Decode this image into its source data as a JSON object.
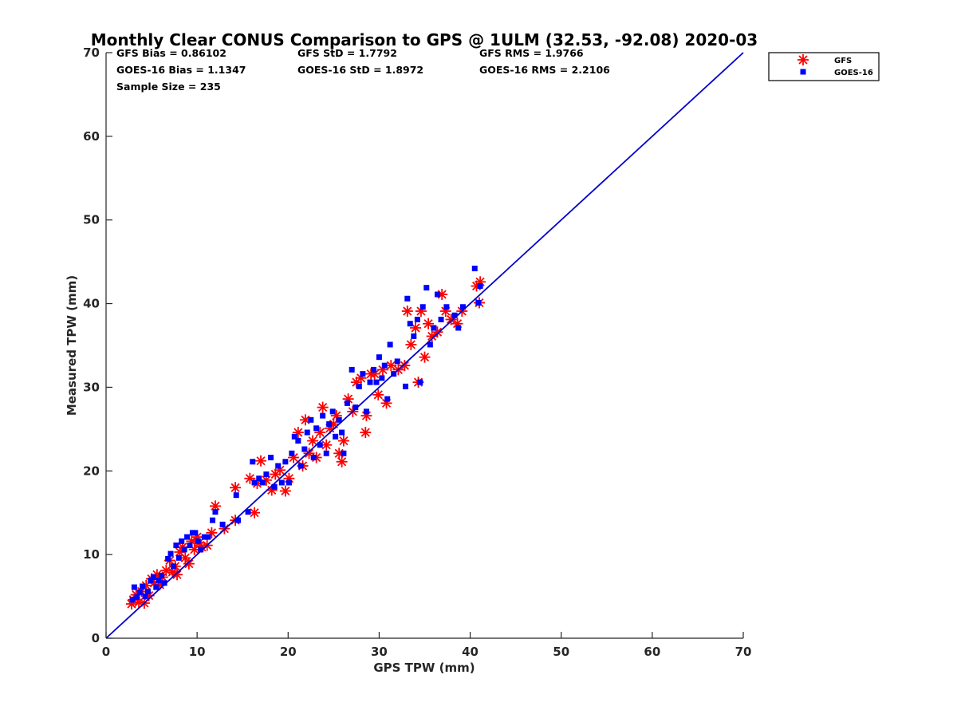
{
  "chart_data": {
    "type": "scatter",
    "title": "Monthly Clear CONUS Comparison to GPS @ 1ULM (32.53, -92.08) 2020-03",
    "xlabel": "GPS TPW (mm)",
    "ylabel": "Measured TPW (mm)",
    "xlim": [
      0,
      70
    ],
    "ylim": [
      0,
      70
    ],
    "xticks": [
      "0",
      "10",
      "20",
      "30",
      "40",
      "50",
      "60",
      "70"
    ],
    "yticks": [
      "0",
      "10",
      "20",
      "30",
      "40",
      "50",
      "60",
      "70"
    ],
    "grid": false,
    "legend_position": "top-right outside",
    "reference_line": {
      "x": [
        0,
        70
      ],
      "y": [
        0,
        70
      ],
      "color": "#0000cc"
    },
    "stats": {
      "gfs_bias": "GFS Bias = 0.86102",
      "gfs_std": "GFS StD = 1.7792",
      "gfs_rms": "GFS RMS = 1.9766",
      "goes_bias": "GOES-16 Bias = 1.1347",
      "goes_std": "GOES-16 StD = 1.8972",
      "goes_rms": "GOES-16 RMS = 2.2106",
      "sample_size": "Sample Size = 235"
    },
    "series": [
      {
        "name": "GFS",
        "marker": "asterisk",
        "color": "#ff0000",
        "points": [
          [
            2.8,
            4.1
          ],
          [
            3.0,
            4.6
          ],
          [
            3.3,
            5.2
          ],
          [
            3.6,
            4.3
          ],
          [
            3.9,
            5.6
          ],
          [
            4.2,
            4.2
          ],
          [
            4.4,
            6.3
          ],
          [
            4.7,
            5.1
          ],
          [
            5.0,
            7.1
          ],
          [
            5.3,
            6.6
          ],
          [
            5.6,
            7.6
          ],
          [
            5.9,
            6.4
          ],
          [
            6.2,
            7.3
          ],
          [
            6.6,
            8.1
          ],
          [
            7.0,
            9.3
          ],
          [
            7.3,
            7.9
          ],
          [
            7.6,
            8.6
          ],
          [
            7.8,
            7.6
          ],
          [
            8.1,
            10.3
          ],
          [
            8.4,
            10.9
          ],
          [
            8.7,
            9.6
          ],
          [
            9.1,
            8.9
          ],
          [
            9.4,
            11.6
          ],
          [
            9.7,
            10.6
          ],
          [
            10.0,
            12.1
          ],
          [
            10.2,
            11.4
          ],
          [
            10.5,
            10.9
          ],
          [
            11.1,
            11.1
          ],
          [
            11.6,
            12.6
          ],
          [
            12.0,
            15.8
          ],
          [
            13.0,
            13.1
          ],
          [
            14.2,
            18.0
          ],
          [
            14.2,
            14.1
          ],
          [
            15.8,
            19.1
          ],
          [
            16.3,
            15.0
          ],
          [
            16.6,
            18.5
          ],
          [
            17.0,
            21.2
          ],
          [
            17.6,
            18.9
          ],
          [
            18.2,
            17.7
          ],
          [
            18.6,
            19.6
          ],
          [
            19.1,
            20.1
          ],
          [
            19.7,
            17.6
          ],
          [
            20.1,
            19.1
          ],
          [
            20.6,
            21.6
          ],
          [
            21.1,
            24.6
          ],
          [
            21.6,
            20.6
          ],
          [
            21.9,
            26.1
          ],
          [
            22.3,
            22.1
          ],
          [
            22.7,
            23.6
          ],
          [
            23.1,
            21.6
          ],
          [
            23.5,
            24.6
          ],
          [
            23.8,
            27.6
          ],
          [
            24.2,
            23.1
          ],
          [
            24.6,
            25.1
          ],
          [
            25.0,
            25.6
          ],
          [
            25.3,
            26.6
          ],
          [
            25.6,
            22.1
          ],
          [
            25.9,
            21.1
          ],
          [
            26.1,
            23.6
          ],
          [
            26.6,
            28.6
          ],
          [
            27.1,
            27.1
          ],
          [
            27.5,
            30.6
          ],
          [
            28.0,
            31.1
          ],
          [
            28.5,
            24.6
          ],
          [
            28.6,
            26.6
          ],
          [
            29.1,
            31.6
          ],
          [
            29.5,
            31.6
          ],
          [
            29.9,
            29.1
          ],
          [
            30.4,
            32.1
          ],
          [
            30.8,
            28.1
          ],
          [
            31.3,
            32.6
          ],
          [
            32.1,
            32.1
          ],
          [
            32.8,
            32.6
          ],
          [
            33.1,
            39.1
          ],
          [
            33.5,
            35.1
          ],
          [
            34.0,
            37.1
          ],
          [
            34.3,
            30.6
          ],
          [
            34.6,
            39.1
          ],
          [
            35.0,
            33.6
          ],
          [
            35.4,
            37.6
          ],
          [
            35.8,
            36.1
          ],
          [
            36.4,
            36.6
          ],
          [
            36.9,
            41.1
          ],
          [
            37.3,
            39.1
          ],
          [
            37.9,
            38.1
          ],
          [
            38.6,
            37.6
          ],
          [
            39.1,
            39.1
          ],
          [
            40.7,
            42.1
          ],
          [
            41.0,
            40.1
          ],
          [
            41.1,
            42.6
          ]
        ]
      },
      {
        "name": "GOES-16",
        "marker": "square",
        "color": "#0000ff",
        "points": [
          [
            2.9,
            4.6
          ],
          [
            3.1,
            6.1
          ],
          [
            3.4,
            4.9
          ],
          [
            3.7,
            5.5
          ],
          [
            4.0,
            6.2
          ],
          [
            4.3,
            5.0
          ],
          [
            4.6,
            5.6
          ],
          [
            4.9,
            6.9
          ],
          [
            5.2,
            7.3
          ],
          [
            5.5,
            6.1
          ],
          [
            5.8,
            6.9
          ],
          [
            6.1,
            7.5
          ],
          [
            6.4,
            6.6
          ],
          [
            6.8,
            9.5
          ],
          [
            7.1,
            10.1
          ],
          [
            7.4,
            8.6
          ],
          [
            7.7,
            11.1
          ],
          [
            8.0,
            9.6
          ],
          [
            8.3,
            11.6
          ],
          [
            8.6,
            10.6
          ],
          [
            8.9,
            12.1
          ],
          [
            9.2,
            11.1
          ],
          [
            9.5,
            12.6
          ],
          [
            9.8,
            12.6
          ],
          [
            10.1,
            11.6
          ],
          [
            10.4,
            10.6
          ],
          [
            10.8,
            12.1
          ],
          [
            11.2,
            12.1
          ],
          [
            11.7,
            14.1
          ],
          [
            12.0,
            15.1
          ],
          [
            12.8,
            13.6
          ],
          [
            14.3,
            17.1
          ],
          [
            14.5,
            14.1
          ],
          [
            15.6,
            15.1
          ],
          [
            16.1,
            21.1
          ],
          [
            16.3,
            18.6
          ],
          [
            16.8,
            19.1
          ],
          [
            17.2,
            18.6
          ],
          [
            17.6,
            19.6
          ],
          [
            18.1,
            21.6
          ],
          [
            18.5,
            18.1
          ],
          [
            18.9,
            20.6
          ],
          [
            19.3,
            18.6
          ],
          [
            19.7,
            21.1
          ],
          [
            20.1,
            18.6
          ],
          [
            20.4,
            22.1
          ],
          [
            20.7,
            24.1
          ],
          [
            21.1,
            23.6
          ],
          [
            21.4,
            20.6
          ],
          [
            21.8,
            22.6
          ],
          [
            22.1,
            24.6
          ],
          [
            22.5,
            26.1
          ],
          [
            22.8,
            21.6
          ],
          [
            23.1,
            25.1
          ],
          [
            23.5,
            23.1
          ],
          [
            23.8,
            26.6
          ],
          [
            24.2,
            22.1
          ],
          [
            24.5,
            25.6
          ],
          [
            24.9,
            27.1
          ],
          [
            25.2,
            24.1
          ],
          [
            25.6,
            26.1
          ],
          [
            25.9,
            24.6
          ],
          [
            26.1,
            22.1
          ],
          [
            26.5,
            28.1
          ],
          [
            27.0,
            32.1
          ],
          [
            27.4,
            27.6
          ],
          [
            27.8,
            30.1
          ],
          [
            28.2,
            31.6
          ],
          [
            28.6,
            27.1
          ],
          [
            29.0,
            30.6
          ],
          [
            29.4,
            32.1
          ],
          [
            29.7,
            30.6
          ],
          [
            30.0,
            33.6
          ],
          [
            30.3,
            31.1
          ],
          [
            30.6,
            32.6
          ],
          [
            30.9,
            28.6
          ],
          [
            31.2,
            35.1
          ],
          [
            31.6,
            31.6
          ],
          [
            32.0,
            33.1
          ],
          [
            32.9,
            30.1
          ],
          [
            33.1,
            40.6
          ],
          [
            33.4,
            37.6
          ],
          [
            33.8,
            36.1
          ],
          [
            34.2,
            38.1
          ],
          [
            34.5,
            30.6
          ],
          [
            34.8,
            39.6
          ],
          [
            35.2,
            41.9
          ],
          [
            35.6,
            35.1
          ],
          [
            36.0,
            37.1
          ],
          [
            36.4,
            41.1
          ],
          [
            36.8,
            38.1
          ],
          [
            37.4,
            39.6
          ],
          [
            38.3,
            38.6
          ],
          [
            38.7,
            37.1
          ],
          [
            39.2,
            39.6
          ],
          [
            40.5,
            44.2
          ],
          [
            40.9,
            40.1
          ],
          [
            41.1,
            42.1
          ]
        ]
      }
    ]
  }
}
